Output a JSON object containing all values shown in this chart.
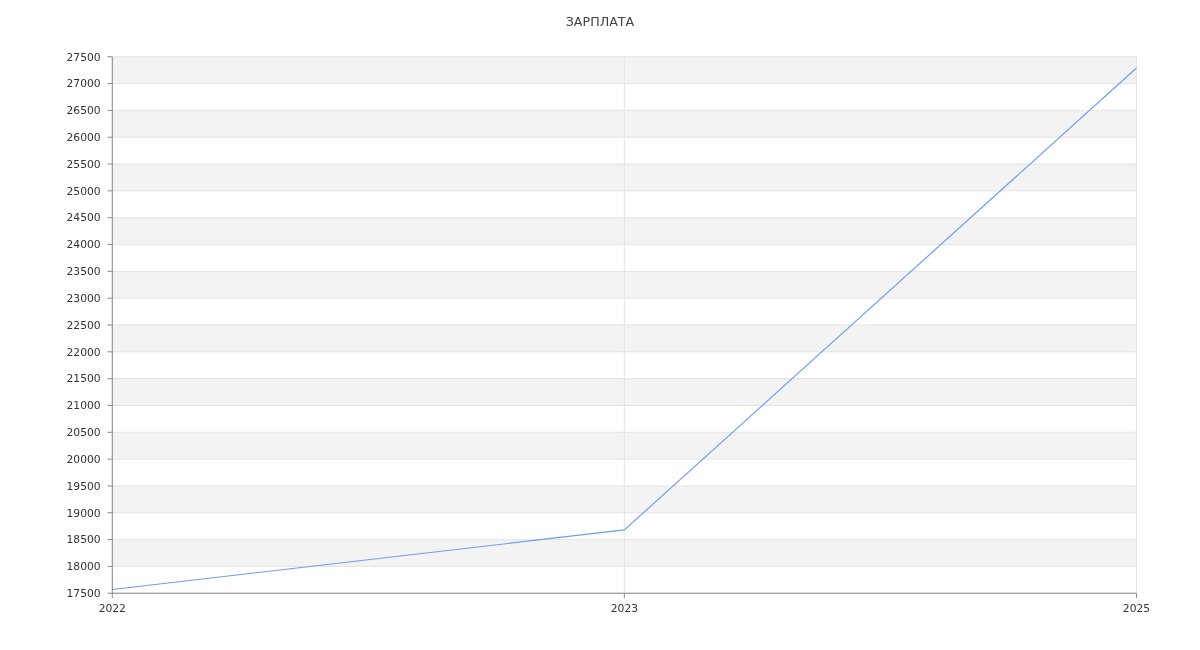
{
  "chart_data": {
    "type": "line",
    "title": "ЗАРПЛАТА",
    "categories": [
      "2022",
      "2023",
      "2025"
    ],
    "series": [
      {
        "color": "#6f9cf0",
        "values": [
          17570,
          18680,
          27290
        ]
      }
    ],
    "ylim": [
      17500,
      27500
    ],
    "yticks": [
      17500,
      18000,
      18500,
      19000,
      19500,
      20000,
      20500,
      21000,
      21500,
      22000,
      22500,
      23000,
      23500,
      24000,
      24500,
      25000,
      25500,
      26000,
      26500,
      27000,
      27500
    ],
    "grid": true,
    "marker": "none",
    "line_style": "solid"
  }
}
